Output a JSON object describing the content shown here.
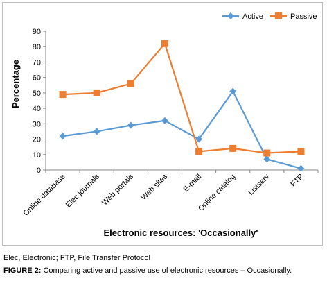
{
  "chart_data": {
    "type": "line",
    "categories": [
      "Online database",
      "Elec journals",
      "Web portals",
      "Web sites",
      "E-mail",
      "Online catalog",
      "Listserv",
      "FTP"
    ],
    "series": [
      {
        "name": "Active",
        "values": [
          22,
          25,
          29,
          32,
          20,
          51,
          7,
          1
        ],
        "color": "#5b9bd5",
        "marker": "diamond"
      },
      {
        "name": "Passive",
        "values": [
          49,
          50,
          56,
          82,
          12,
          14,
          11,
          12
        ],
        "color": "#ed7d31",
        "marker": "square"
      }
    ],
    "ylabel": "Percentage",
    "xlabel": "Electronic resources: 'Occasionally'",
    "ylim": [
      0,
      90
    ],
    "yticks": [
      0,
      10,
      20,
      30,
      40,
      50,
      60,
      70,
      80,
      90
    ],
    "grid": false,
    "legend_position": "top-right"
  },
  "footnote": "Elec, Electronic; FTP, File Transfer Protocol",
  "caption": {
    "label": "FIGURE 2:",
    "text": " Comparing active and passive use of electronic resources – Occasionally."
  }
}
